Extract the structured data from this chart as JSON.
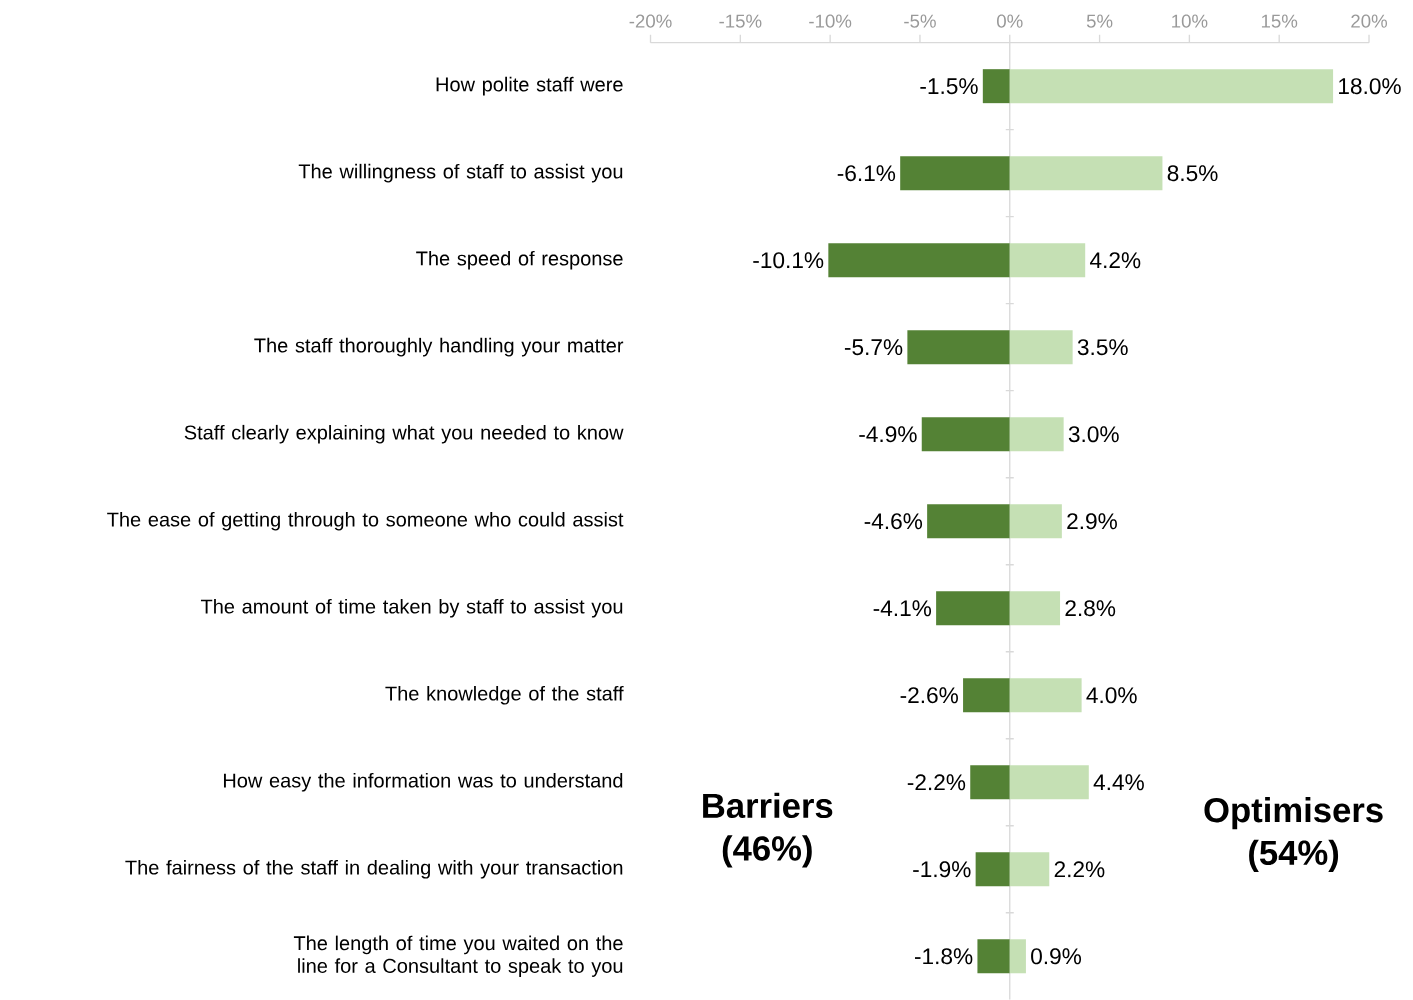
{
  "chart_data": {
    "type": "bar",
    "orientation": "horizontal",
    "categories": [
      "How polite staff were",
      "The willingness of staff to assist you",
      "The speed of response",
      "The staff thoroughly handling your matter",
      "Staff clearly explaining what you needed to know",
      "The ease of getting through to someone who could assist",
      "The amount of time taken by staff to assist you",
      "The knowledge of the staff",
      "How easy the information was to understand",
      "The fairness of the staff in dealing with your transaction",
      "The length of time you waited on the line for a Consultant to speak to you"
    ],
    "series": [
      {
        "color": "#548235",
        "values": [
          -1.5,
          -6.1,
          -10.1,
          -5.7,
          -4.9,
          -4.6,
          -4.1,
          -2.6,
          -2.2,
          -1.9,
          -1.8
        ],
        "value_labels": [
          "-1.5%",
          "-6.1%",
          "-10.1%",
          "-5.7%",
          "-4.9%",
          "-4.6%",
          "-4.1%",
          "-2.6%",
          "-2.2%",
          "-1.9%",
          "-1.8%"
        ]
      },
      {
        "color": "#c5e0b4",
        "values": [
          18.0,
          8.5,
          4.2,
          3.5,
          3.0,
          2.9,
          2.8,
          4.0,
          4.4,
          2.2,
          0.9
        ],
        "value_labels": [
          "18.0%",
          "8.5%",
          "4.2%",
          "3.5%",
          "3.0%",
          "2.9%",
          "2.8%",
          "4.0%",
          "4.4%",
          "2.2%",
          "0.9%"
        ]
      }
    ],
    "xlim": [
      -20,
      20
    ],
    "xticks": [
      {
        "value": -20,
        "label": "-20%"
      },
      {
        "value": -15,
        "label": "-15%"
      },
      {
        "value": -10,
        "label": "-10%"
      },
      {
        "value": -5,
        "label": "-5%"
      },
      {
        "value": 0,
        "label": "0%"
      },
      {
        "value": 5,
        "label": "5%"
      },
      {
        "value": 10,
        "label": "10%"
      },
      {
        "value": 15,
        "label": "15%"
      },
      {
        "value": 20,
        "label": "20%"
      }
    ],
    "stacked": true,
    "annotations": [
      "Barriers (46%)",
      "Optimisers (54%)"
    ]
  }
}
